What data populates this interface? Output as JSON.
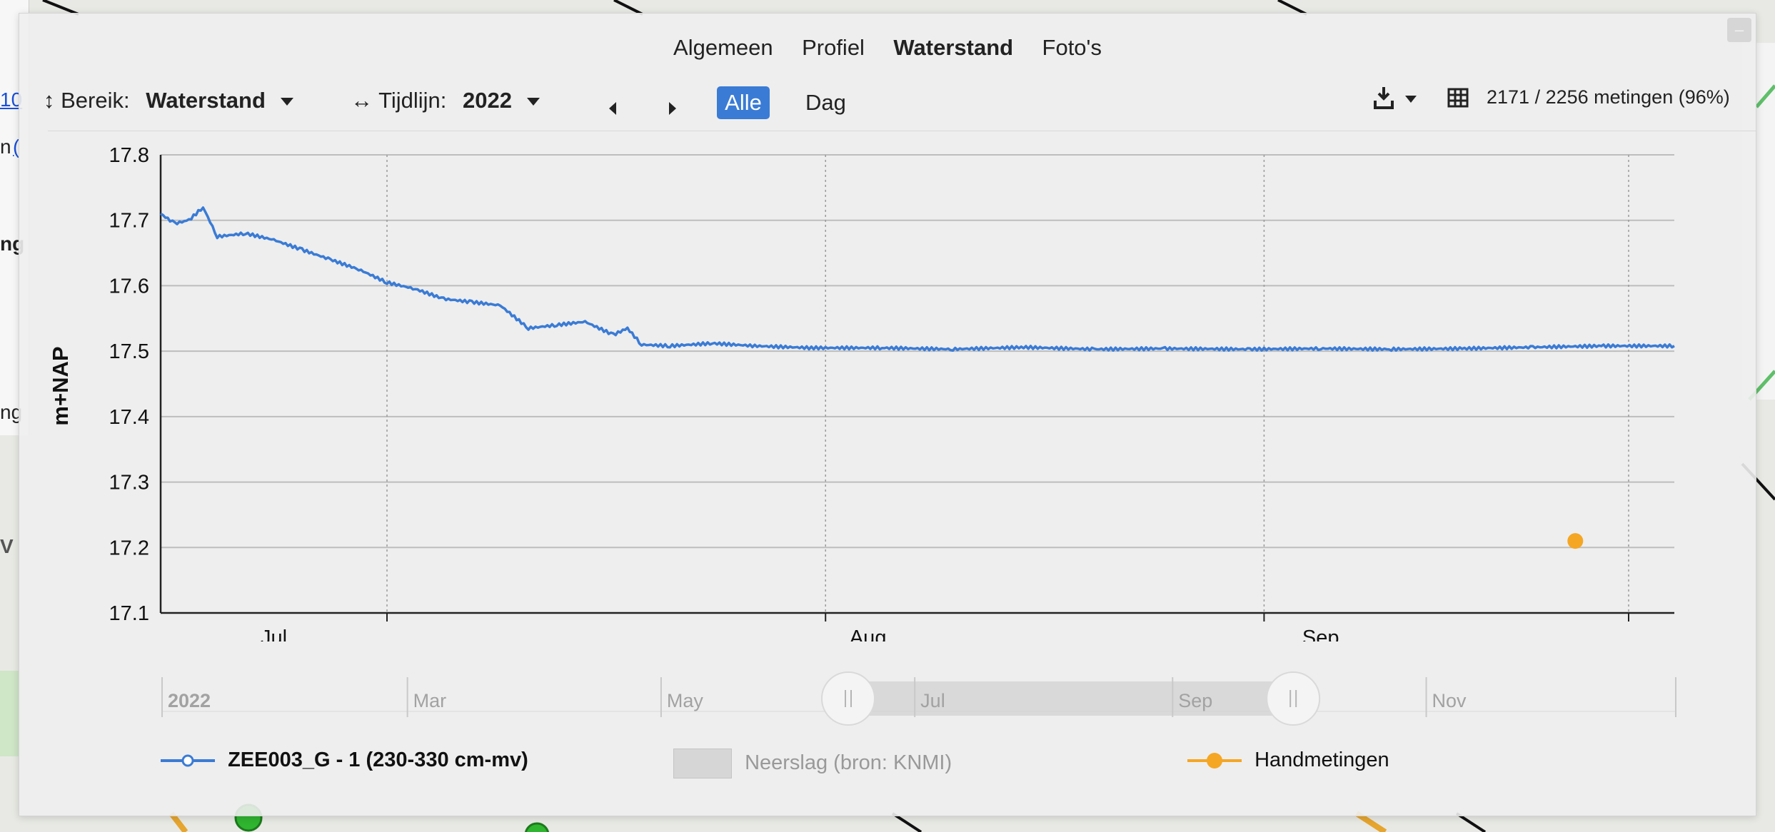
{
  "side_panel": {
    "fragments": [
      "10",
      "n",
      "(",
      "ng",
      "ng",
      "V"
    ]
  },
  "tabs": [
    {
      "label": "Algemeen",
      "active": false
    },
    {
      "label": "Profiel",
      "active": false
    },
    {
      "label": "Waterstand",
      "active": true
    },
    {
      "label": "Foto's",
      "active": false
    }
  ],
  "toolbar": {
    "bereik_label": "Bereik:",
    "bereik_value": "Waterstand",
    "tijdlijn_label": "Tijdlijn:",
    "tijdlijn_value": "2022",
    "alle_label": "Alle",
    "dag_label": "Dag",
    "measurement_count": "2171 / 2256 metingen (96%)",
    "icons": [
      "vertical-arrows-icon",
      "horizontal-arrows-icon",
      "prev-icon",
      "next-icon",
      "download-icon",
      "table-icon"
    ]
  },
  "navigator": {
    "labels": [
      "2022",
      "Mar",
      "May",
      "Jul",
      "Sep",
      "Nov"
    ],
    "selection_start": "2022-06-15",
    "selection_end": "2022-09-30"
  },
  "legend": {
    "series_label": "ZEE003_G - 1 (230-330 cm-mv)",
    "precip_label": "Neerslag (bron: KNMI)",
    "manual_label": "Handmetingen"
  },
  "colors": {
    "series": "#3a7bd5",
    "manual": "#f5a623",
    "accent_button": "#3a7bd5"
  },
  "chart_data": {
    "type": "line",
    "ylabel": "m+NAP",
    "xlabel": "",
    "ylim": [
      17.1,
      17.8
    ],
    "yticks": [
      "17.8",
      "17.7",
      "17.6",
      "17.5",
      "17.4",
      "17.3",
      "17.2",
      "17.1"
    ],
    "xtick_labels": [
      "Jul",
      "Aug",
      "Sep"
    ],
    "xrange": [
      "2022-06-15",
      "2022-09-30"
    ],
    "series": [
      {
        "name": "ZEE003_G - 1 (230-330 cm-mv)",
        "points": [
          [
            "2022-06-15",
            17.71
          ],
          [
            "2022-06-16",
            17.695
          ],
          [
            "2022-06-17",
            17.7
          ],
          [
            "2022-06-18",
            17.72
          ],
          [
            "2022-06-19",
            17.675
          ],
          [
            "2022-06-21",
            17.68
          ],
          [
            "2022-06-23",
            17.67
          ],
          [
            "2022-06-25",
            17.655
          ],
          [
            "2022-06-27",
            17.64
          ],
          [
            "2022-06-29",
            17.625
          ],
          [
            "2022-07-01",
            17.605
          ],
          [
            "2022-07-03",
            17.595
          ],
          [
            "2022-07-05",
            17.58
          ],
          [
            "2022-07-07",
            17.575
          ],
          [
            "2022-07-09",
            17.57
          ],
          [
            "2022-07-11",
            17.535
          ],
          [
            "2022-07-13",
            17.54
          ],
          [
            "2022-07-15",
            17.545
          ],
          [
            "2022-07-17",
            17.525
          ],
          [
            "2022-07-18",
            17.535
          ],
          [
            "2022-07-19",
            17.51
          ],
          [
            "2022-07-21",
            17.508
          ],
          [
            "2022-07-24",
            17.512
          ],
          [
            "2022-07-27",
            17.508
          ],
          [
            "2022-07-31",
            17.505
          ],
          [
            "2022-08-05",
            17.505
          ],
          [
            "2022-08-10",
            17.503
          ],
          [
            "2022-08-15",
            17.506
          ],
          [
            "2022-08-20",
            17.503
          ],
          [
            "2022-08-25",
            17.504
          ],
          [
            "2022-08-31",
            17.503
          ],
          [
            "2022-09-05",
            17.504
          ],
          [
            "2022-09-10",
            17.503
          ],
          [
            "2022-09-15",
            17.504
          ],
          [
            "2022-09-20",
            17.506
          ],
          [
            "2022-09-25",
            17.508
          ],
          [
            "2022-09-30",
            17.508
          ]
        ]
      },
      {
        "name": "Handmetingen",
        "points": [
          [
            "2022-09-23",
            17.21
          ]
        ]
      }
    ],
    "grid": true,
    "legend": "bottom"
  }
}
